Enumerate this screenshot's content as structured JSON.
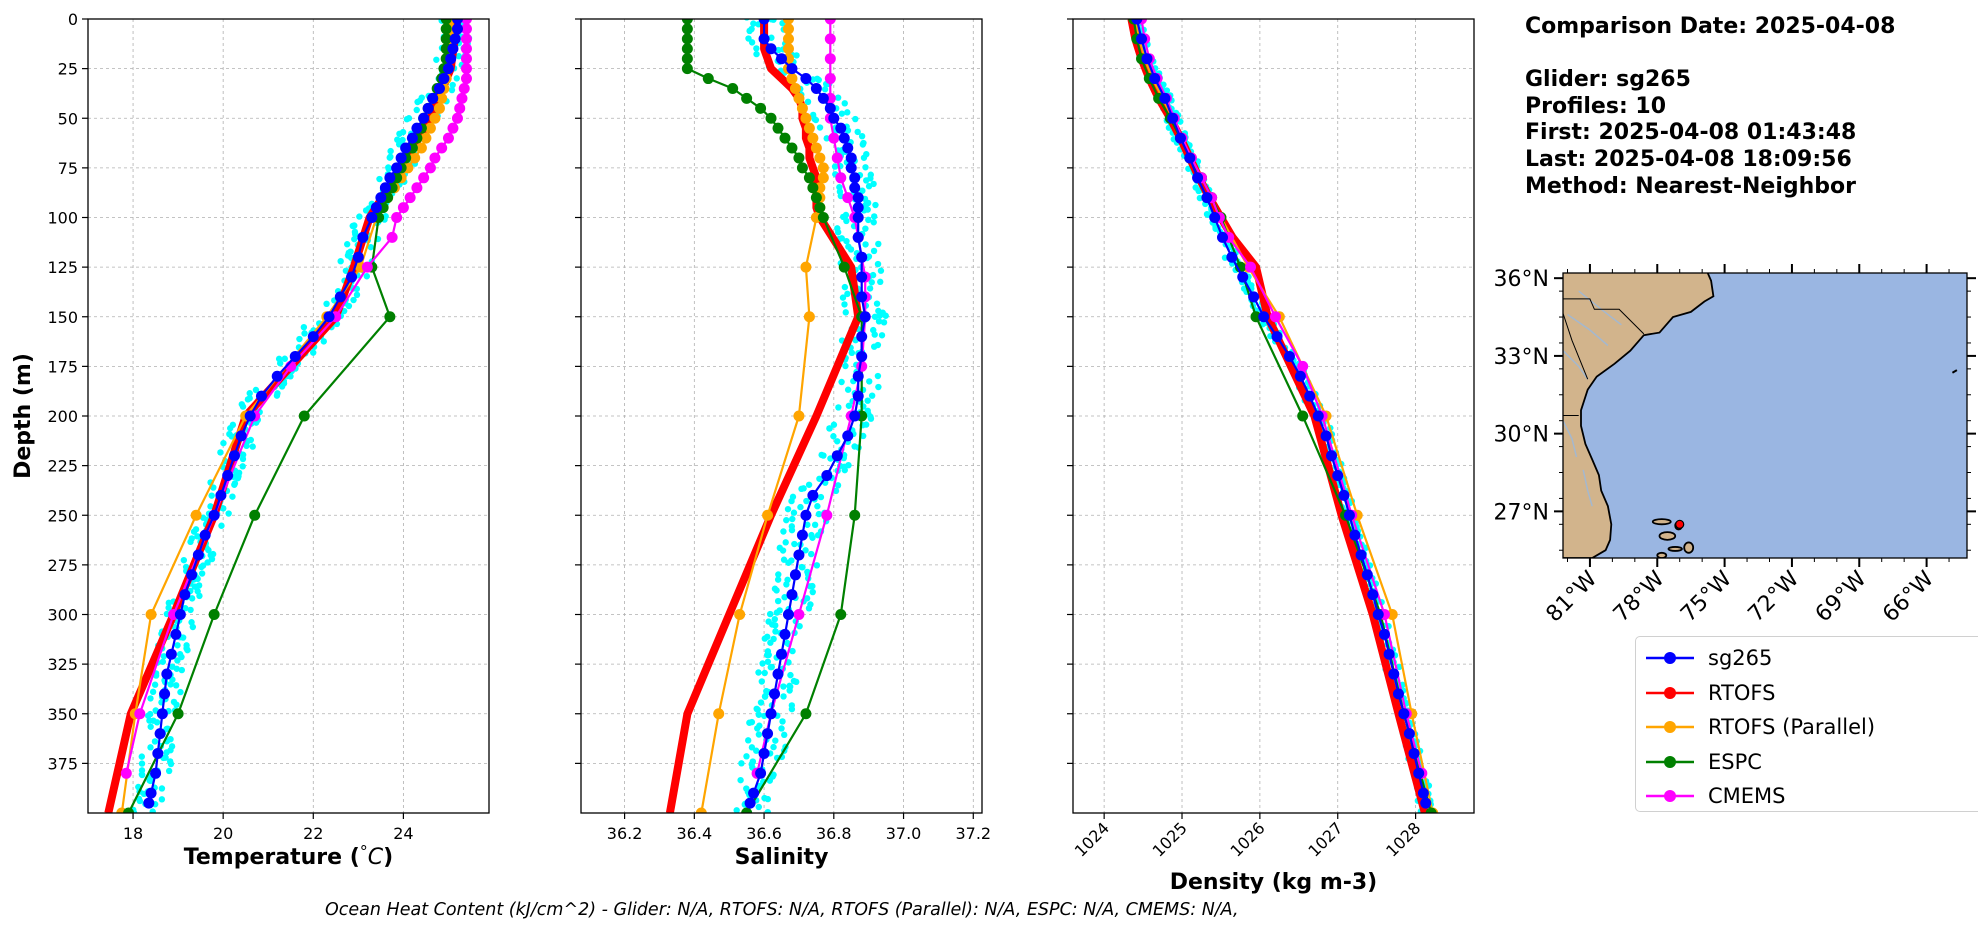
{
  "info": {
    "comparison_date": "Comparison Date: 2025-04-08",
    "glider": "Glider: sg265",
    "profiles": "Profiles: 10",
    "first": "First: 2025-04-08 01:43:48",
    "last": "Last: 2025-04-08 18:09:56",
    "method": "Method: Nearest-Neighbor"
  },
  "footer": "Ocean Heat Content (kJ/cm^2) - Glider: N/A,  RTOFS: N/A,  RTOFS (Parallel): N/A,  ESPC: N/A,  CMEMS: N/A,",
  "colors": {
    "sg265": "#0000ff",
    "RTOFS": "#ff0000",
    "RTOFS (Parallel)": "#ffa500",
    "ESPC": "#008000",
    "CMEMS": "#ff00ff",
    "glider_raw": "#00ffff",
    "land": "#d2b48c",
    "ocean": "#9ab6e2"
  },
  "legend": [
    "sg265",
    "RTOFS",
    "RTOFS (Parallel)",
    "ESPC",
    "CMEMS"
  ],
  "map": {
    "lat_labels": [
      "36°N",
      "33°N",
      "30°N",
      "27°N"
    ],
    "lat_values": [
      36,
      33,
      30,
      27
    ],
    "lon_labels": [
      "81°W",
      "78°W",
      "75°W",
      "72°W",
      "69°W",
      "66°W"
    ],
    "lon_values": [
      -81,
      -78,
      -75,
      -72,
      -69,
      -66
    ],
    "extent": {
      "lon": [
        -82.2,
        -64.2
      ],
      "lat": [
        25.2,
        36.2
      ]
    },
    "glider_position": {
      "lon": -77.0,
      "lat": 26.5
    }
  },
  "chart_data": [
    {
      "type": "line",
      "xlabel": "Temperature (°C)",
      "ylabel": "Depth (m)",
      "xlim": [
        17.0,
        25.9
      ],
      "ylim": [
        400,
        0
      ],
      "xticks": [
        18,
        20,
        22,
        24
      ],
      "yticks": [
        0,
        25,
        50,
        75,
        100,
        125,
        150,
        175,
        200,
        225,
        250,
        275,
        300,
        325,
        350,
        375
      ],
      "grid": true,
      "series": [
        {
          "name": "sg265",
          "depth": [
            0,
            5,
            10,
            15,
            20,
            25,
            30,
            35,
            40,
            45,
            50,
            55,
            60,
            65,
            70,
            75,
            80,
            85,
            90,
            95,
            100,
            110,
            120,
            130,
            140,
            150,
            160,
            170,
            180,
            190,
            200,
            210,
            220,
            230,
            240,
            250,
            260,
            270,
            280,
            290,
            300,
            310,
            320,
            330,
            340,
            350,
            360,
            370,
            380,
            390,
            395
          ],
          "values": [
            25.2,
            25.2,
            25.15,
            25.1,
            25.05,
            25.0,
            24.9,
            24.8,
            24.65,
            24.55,
            24.45,
            24.3,
            24.2,
            24.05,
            23.95,
            23.85,
            23.7,
            23.6,
            23.5,
            23.4,
            23.3,
            23.1,
            23.0,
            22.85,
            22.6,
            22.35,
            22.0,
            21.6,
            21.2,
            20.85,
            20.6,
            20.4,
            20.25,
            20.1,
            19.95,
            19.8,
            19.6,
            19.45,
            19.3,
            19.15,
            19.05,
            18.95,
            18.85,
            18.75,
            18.7,
            18.65,
            18.6,
            18.55,
            18.5,
            18.4,
            18.35
          ]
        },
        {
          "name": "RTOFS",
          "depth": [
            0,
            25,
            50,
            75,
            100,
            125,
            150,
            175,
            200,
            250,
            300,
            350,
            400
          ],
          "values": [
            25.2,
            25.05,
            24.6,
            23.95,
            23.25,
            22.9,
            22.5,
            21.5,
            20.5,
            19.8,
            18.9,
            17.95,
            17.45
          ]
        },
        {
          "name": "RTOFS (Parallel)",
          "depth": [
            0,
            5,
            10,
            15,
            20,
            25,
            30,
            35,
            40,
            45,
            50,
            55,
            60,
            65,
            70,
            75,
            80,
            85,
            90,
            95,
            100,
            125,
            150,
            200,
            250,
            300,
            350,
            400
          ],
          "values": [
            25.05,
            25.05,
            25.05,
            25.0,
            25.0,
            25.0,
            24.95,
            24.9,
            24.85,
            24.8,
            24.7,
            24.6,
            24.5,
            24.4,
            24.25,
            24.1,
            23.95,
            23.8,
            23.65,
            23.5,
            23.4,
            23.05,
            22.3,
            20.5,
            19.4,
            18.4,
            18.05,
            17.75
          ]
        },
        {
          "name": "ESPC",
          "depth": [
            0,
            5,
            10,
            15,
            20,
            25,
            30,
            35,
            40,
            45,
            50,
            55,
            60,
            65,
            70,
            75,
            80,
            85,
            90,
            95,
            100,
            125,
            150,
            200,
            250,
            300,
            350,
            400
          ],
          "values": [
            24.95,
            24.95,
            24.95,
            24.95,
            24.95,
            24.9,
            24.85,
            24.75,
            24.65,
            24.55,
            24.45,
            24.4,
            24.3,
            24.2,
            24.05,
            23.95,
            23.85,
            23.75,
            23.65,
            23.55,
            23.45,
            23.3,
            23.7,
            21.8,
            20.7,
            19.8,
            19.0,
            17.9
          ]
        },
        {
          "name": "CMEMS",
          "depth": [
            0,
            5,
            10,
            15,
            20,
            25,
            30,
            35,
            40,
            45,
            50,
            55,
            60,
            65,
            70,
            75,
            80,
            85,
            90,
            95,
            100,
            110,
            125,
            150,
            175,
            200,
            250,
            300,
            350,
            380
          ],
          "values": [
            25.4,
            25.4,
            25.4,
            25.4,
            25.4,
            25.4,
            25.4,
            25.35,
            25.3,
            25.25,
            25.2,
            25.1,
            25.0,
            24.85,
            24.7,
            24.6,
            24.45,
            24.3,
            24.15,
            24.0,
            23.85,
            23.75,
            23.2,
            22.5,
            21.5,
            20.7,
            19.8,
            18.9,
            18.15,
            17.85
          ]
        }
      ]
    },
    {
      "type": "line",
      "xlabel": "Salinity",
      "ylabel": "",
      "xlim": [
        36.075,
        37.225
      ],
      "ylim": [
        400,
        0
      ],
      "xticks": [
        36.2,
        36.4,
        36.6,
        36.8,
        37.0,
        37.2
      ],
      "yticks": [
        0,
        25,
        50,
        75,
        100,
        125,
        150,
        175,
        200,
        225,
        250,
        275,
        300,
        325,
        350,
        375
      ],
      "grid": true,
      "series": [
        {
          "name": "sg265",
          "depth": [
            0,
            10,
            15,
            20,
            25,
            30,
            35,
            40,
            45,
            50,
            55,
            60,
            65,
            70,
            75,
            80,
            85,
            90,
            95,
            100,
            110,
            120,
            130,
            140,
            150,
            160,
            170,
            180,
            190,
            200,
            210,
            220,
            230,
            240,
            250,
            260,
            270,
            280,
            290,
            300,
            310,
            320,
            330,
            340,
            350,
            360,
            370,
            380,
            390,
            395
          ],
          "values": [
            36.6,
            36.6,
            36.62,
            36.65,
            36.68,
            36.72,
            36.75,
            36.77,
            36.79,
            36.8,
            36.82,
            36.83,
            36.84,
            36.85,
            36.85,
            36.86,
            36.86,
            36.87,
            36.87,
            36.87,
            36.87,
            36.88,
            36.88,
            36.88,
            36.89,
            36.88,
            36.88,
            36.87,
            36.87,
            36.86,
            36.84,
            36.81,
            36.78,
            36.74,
            36.72,
            36.71,
            36.7,
            36.69,
            36.68,
            36.67,
            36.66,
            36.65,
            36.64,
            36.63,
            36.62,
            36.61,
            36.6,
            36.59,
            36.57,
            36.56
          ]
        },
        {
          "name": "RTOFS",
          "depth": [
            0,
            5,
            10,
            15,
            20,
            25,
            30,
            35,
            40,
            45,
            50,
            55,
            60,
            65,
            70,
            75,
            80,
            85,
            90,
            95,
            100,
            125,
            150,
            200,
            250,
            300,
            350,
            400
          ],
          "values": [
            36.6,
            36.6,
            36.6,
            36.6,
            36.61,
            36.62,
            36.65,
            36.68,
            36.7,
            36.71,
            36.71,
            36.72,
            36.72,
            36.73,
            36.73,
            36.74,
            36.75,
            36.75,
            36.75,
            36.75,
            36.76,
            36.85,
            36.87,
            36.75,
            36.62,
            36.5,
            36.38,
            36.33
          ]
        },
        {
          "name": "RTOFS (Parallel)",
          "depth": [
            0,
            5,
            10,
            15,
            20,
            25,
            30,
            35,
            40,
            45,
            50,
            55,
            60,
            65,
            70,
            75,
            80,
            85,
            90,
            95,
            100,
            125,
            150,
            200,
            250,
            300,
            350,
            400
          ],
          "values": [
            36.67,
            36.67,
            36.67,
            36.67,
            36.67,
            36.67,
            36.68,
            36.69,
            36.7,
            36.71,
            36.72,
            36.73,
            36.74,
            36.75,
            36.76,
            36.77,
            36.77,
            36.76,
            36.76,
            36.76,
            36.75,
            36.72,
            36.73,
            36.7,
            36.61,
            36.53,
            36.47,
            36.42
          ]
        },
        {
          "name": "ESPC",
          "depth": [
            0,
            5,
            10,
            15,
            20,
            25,
            30,
            35,
            40,
            45,
            50,
            55,
            60,
            65,
            70,
            75,
            80,
            85,
            90,
            95,
            100,
            125,
            150,
            200,
            250,
            300,
            350,
            400
          ],
          "values": [
            36.38,
            36.38,
            36.38,
            36.38,
            36.38,
            36.38,
            36.44,
            36.51,
            36.55,
            36.59,
            36.62,
            36.64,
            36.66,
            36.68,
            36.7,
            36.71,
            36.73,
            36.74,
            36.75,
            36.76,
            36.77,
            36.83,
            36.88,
            36.88,
            36.86,
            36.82,
            36.72,
            36.55
          ]
        },
        {
          "name": "CMEMS",
          "depth": [
            0,
            10,
            20,
            30,
            40,
            50,
            60,
            70,
            80,
            90,
            100,
            110,
            120,
            130,
            140,
            150,
            175,
            200,
            250,
            300,
            350,
            380
          ],
          "values": [
            36.79,
            36.79,
            36.79,
            36.79,
            36.79,
            36.79,
            36.8,
            36.81,
            36.82,
            36.84,
            36.86,
            36.87,
            36.88,
            36.89,
            36.89,
            36.89,
            36.88,
            36.85,
            36.78,
            36.7,
            36.62,
            36.58
          ]
        }
      ]
    },
    {
      "type": "line",
      "xlabel": "Density (kg m-3)",
      "ylabel": "",
      "xlim": [
        1023.6,
        1028.75
      ],
      "ylim": [
        400,
        0
      ],
      "xticks": [
        1024,
        1025,
        1026,
        1027,
        1028
      ],
      "yticks": [
        0,
        25,
        50,
        75,
        100,
        125,
        150,
        175,
        200,
        225,
        250,
        275,
        300,
        325,
        350,
        375
      ],
      "grid": true,
      "series": [
        {
          "name": "sg265",
          "depth": [
            0,
            10,
            20,
            30,
            40,
            50,
            60,
            70,
            80,
            90,
            100,
            110,
            120,
            130,
            140,
            150,
            160,
            170,
            180,
            190,
            200,
            210,
            220,
            230,
            240,
            250,
            260,
            270,
            280,
            290,
            300,
            310,
            320,
            330,
            340,
            350,
            360,
            370,
            380,
            390,
            395
          ],
          "values": [
            1024.42,
            1024.48,
            1024.55,
            1024.65,
            1024.78,
            1024.88,
            1024.98,
            1025.1,
            1025.2,
            1025.32,
            1025.42,
            1025.52,
            1025.64,
            1025.78,
            1025.92,
            1026.05,
            1026.22,
            1026.38,
            1026.52,
            1026.64,
            1026.75,
            1026.85,
            1026.92,
            1027.0,
            1027.08,
            1027.15,
            1027.22,
            1027.3,
            1027.38,
            1027.45,
            1027.52,
            1027.6,
            1027.66,
            1027.72,
            1027.78,
            1027.85,
            1027.92,
            1027.98,
            1028.04,
            1028.1,
            1028.13
          ]
        },
        {
          "name": "RTOFS",
          "depth": [
            0,
            10,
            20,
            30,
            40,
            50,
            60,
            70,
            80,
            90,
            100,
            110,
            125,
            150,
            175,
            200,
            250,
            300,
            350,
            400
          ],
          "values": [
            1024.35,
            1024.4,
            1024.48,
            1024.58,
            1024.7,
            1024.85,
            1024.98,
            1025.1,
            1025.22,
            1025.35,
            1025.5,
            1025.65,
            1025.95,
            1026.1,
            1026.4,
            1026.7,
            1027.05,
            1027.45,
            1027.78,
            1028.12
          ]
        },
        {
          "name": "RTOFS (Parallel)",
          "depth": [
            0,
            10,
            20,
            30,
            40,
            50,
            60,
            70,
            80,
            90,
            100,
            125,
            150,
            200,
            250,
            300,
            350,
            400
          ],
          "values": [
            1024.4,
            1024.45,
            1024.52,
            1024.62,
            1024.75,
            1024.88,
            1025.0,
            1025.12,
            1025.25,
            1025.38,
            1025.5,
            1025.85,
            1026.25,
            1026.85,
            1027.25,
            1027.7,
            1027.95,
            1028.22
          ]
        },
        {
          "name": "ESPC",
          "depth": [
            0,
            10,
            20,
            30,
            40,
            50,
            60,
            70,
            80,
            90,
            100,
            125,
            150,
            200,
            250,
            300,
            350,
            400
          ],
          "values": [
            1024.38,
            1024.42,
            1024.48,
            1024.58,
            1024.7,
            1024.85,
            1024.98,
            1025.1,
            1025.25,
            1025.38,
            1025.5,
            1025.75,
            1025.95,
            1026.55,
            1027.1,
            1027.55,
            1027.85,
            1028.2
          ]
        },
        {
          "name": "CMEMS",
          "depth": [
            0,
            10,
            20,
            30,
            40,
            50,
            60,
            70,
            80,
            90,
            100,
            110,
            125,
            150,
            175,
            200,
            250,
            300,
            350,
            380
          ],
          "values": [
            1024.48,
            1024.52,
            1024.58,
            1024.68,
            1024.8,
            1024.9,
            1025.0,
            1025.12,
            1025.25,
            1025.38,
            1025.48,
            1025.6,
            1025.88,
            1026.2,
            1026.55,
            1026.8,
            1027.18,
            1027.6,
            1027.88,
            1028.08
          ]
        }
      ]
    }
  ]
}
